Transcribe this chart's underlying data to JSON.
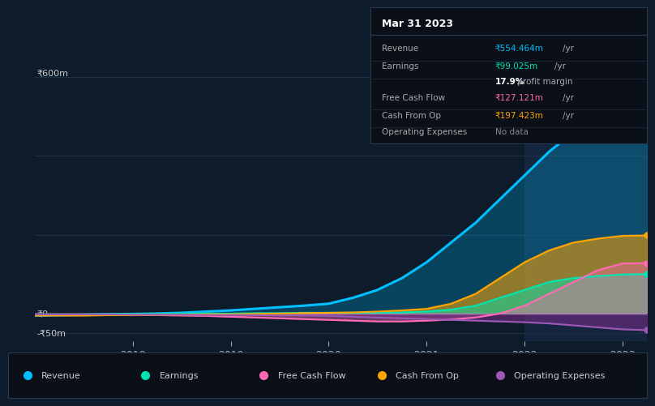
{
  "bg_color": "#0d1b2a",
  "plot_bg_color": "#0d1b2a",
  "grid_color": "#1e3048",
  "years": [
    2017,
    2017.25,
    2017.5,
    2017.75,
    2018,
    2018.25,
    2018.5,
    2018.75,
    2019,
    2019.25,
    2019.5,
    2019.75,
    2020,
    2020.25,
    2020.5,
    2020.75,
    2021,
    2021.25,
    2021.5,
    2021.75,
    2022,
    2022.25,
    2022.5,
    2022.75,
    2023,
    2023.25
  ],
  "revenue": [
    -5,
    -4,
    -3,
    -2,
    -1,
    0,
    2,
    5,
    8,
    12,
    16,
    20,
    25,
    40,
    60,
    90,
    130,
    180,
    230,
    290,
    350,
    410,
    460,
    510,
    554,
    560
  ],
  "earnings": [
    -2,
    -2,
    -2,
    -1,
    -1,
    -1,
    0,
    0,
    0,
    1,
    1,
    2,
    2,
    2,
    2,
    3,
    5,
    10,
    20,
    40,
    60,
    80,
    90,
    95,
    99,
    100
  ],
  "free_cash_flow": [
    -3,
    -3,
    -3,
    -3,
    -3,
    -4,
    -5,
    -6,
    -8,
    -10,
    -12,
    -14,
    -16,
    -18,
    -20,
    -20,
    -18,
    -15,
    -10,
    0,
    20,
    50,
    80,
    110,
    127,
    128
  ],
  "cash_from_op": [
    -5,
    -5,
    -5,
    -4,
    -4,
    -3,
    -3,
    -2,
    -2,
    -1,
    0,
    1,
    2,
    3,
    5,
    8,
    12,
    25,
    50,
    90,
    130,
    160,
    180,
    190,
    197,
    198
  ],
  "operating_expenses": [
    -2,
    -2,
    -2,
    -2,
    -3,
    -3,
    -3,
    -4,
    -4,
    -4,
    -5,
    -5,
    -6,
    -8,
    -10,
    -12,
    -14,
    -16,
    -18,
    -20,
    -22,
    -25,
    -30,
    -35,
    -40,
    -42
  ],
  "revenue_color": "#00bfff",
  "earnings_color": "#00e5b0",
  "fcf_color": "#ff69b4",
  "cashop_color": "#ffa500",
  "opex_color": "#9b59b6",
  "revenue_fill": "#00bfff",
  "earnings_fill": "#00e5b0",
  "fcf_fill": "#ff69b4",
  "cashop_fill": "#ffa500",
  "opex_fill": "#7b2d8b",
  "highlight_color": "#1a3050",
  "yticks": [
    -50,
    0,
    200,
    400,
    600
  ],
  "ymin": -70,
  "ymax": 620,
  "xtick_labels": [
    "2018",
    "2019",
    "2020",
    "2021",
    "2022",
    "2023"
  ],
  "xtick_positions": [
    2018,
    2019,
    2020,
    2021,
    2022,
    2023
  ],
  "tooltip_title": "Mar 31 2023",
  "legend_items": [
    {
      "label": "Revenue",
      "color": "#00bfff"
    },
    {
      "label": "Earnings",
      "color": "#00e5b0"
    },
    {
      "label": "Free Cash Flow",
      "color": "#ff69b4"
    },
    {
      "label": "Cash From Op",
      "color": "#ffa500"
    },
    {
      "label": "Operating Expenses",
      "color": "#9b59b6"
    }
  ]
}
